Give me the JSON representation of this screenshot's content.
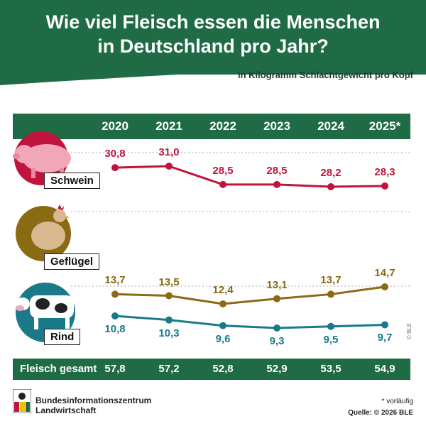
{
  "header": {
    "title_line1": "Wie viel Fleisch essen die Menschen",
    "title_line2": "in Deutschland pro Jahr?",
    "unit_note": "in Kilogramm Schlachtgewicht pro Kopf"
  },
  "chart_data": {
    "type": "line",
    "title": "Wie viel Fleisch essen die Menschen in Deutschland pro Jahr?",
    "subtitle": "in Kilogramm Schlachtgewicht pro Kopf",
    "categories": [
      "2020",
      "2021",
      "2022",
      "2023",
      "2024",
      "2025*"
    ],
    "series": [
      {
        "name": "Schwein",
        "values": [
          30.8,
          31.0,
          28.5,
          28.5,
          28.2,
          28.3
        ],
        "labels": [
          "30,8",
          "31,0",
          "28,5",
          "28,5",
          "28,2",
          "28,3"
        ],
        "color": "#c0143c"
      },
      {
        "name": "Geflügel",
        "values": [
          13.7,
          13.5,
          12.4,
          13.1,
          13.7,
          14.7
        ],
        "labels": [
          "13,7",
          "13,5",
          "12,4",
          "13,1",
          "13,7",
          "14,7"
        ],
        "color": "#8a6a12"
      },
      {
        "name": "Rind",
        "values": [
          10.8,
          10.3,
          9.6,
          9.3,
          9.5,
          9.7
        ],
        "labels": [
          "10,8",
          "10,3",
          "9,6",
          "9,3",
          "9,5",
          "9,7"
        ],
        "color": "#1a7a8a"
      }
    ],
    "totals": {
      "name": "Fleisch gesamt",
      "values": [
        57.8,
        57.2,
        52.8,
        52.9,
        53.5,
        54.9
      ],
      "labels": [
        "57,8",
        "57,2",
        "52,8",
        "52,9",
        "53,5",
        "54,9"
      ]
    },
    "grid": true,
    "xlabel": "",
    "ylabel": ""
  },
  "footer": {
    "org_line1": "Bundesinformationszentrum",
    "org_line2": "Landwirtschaft",
    "note": "* vorläufig",
    "source": "Quelle: © 2026 BLE",
    "copyright": "© BLE"
  }
}
